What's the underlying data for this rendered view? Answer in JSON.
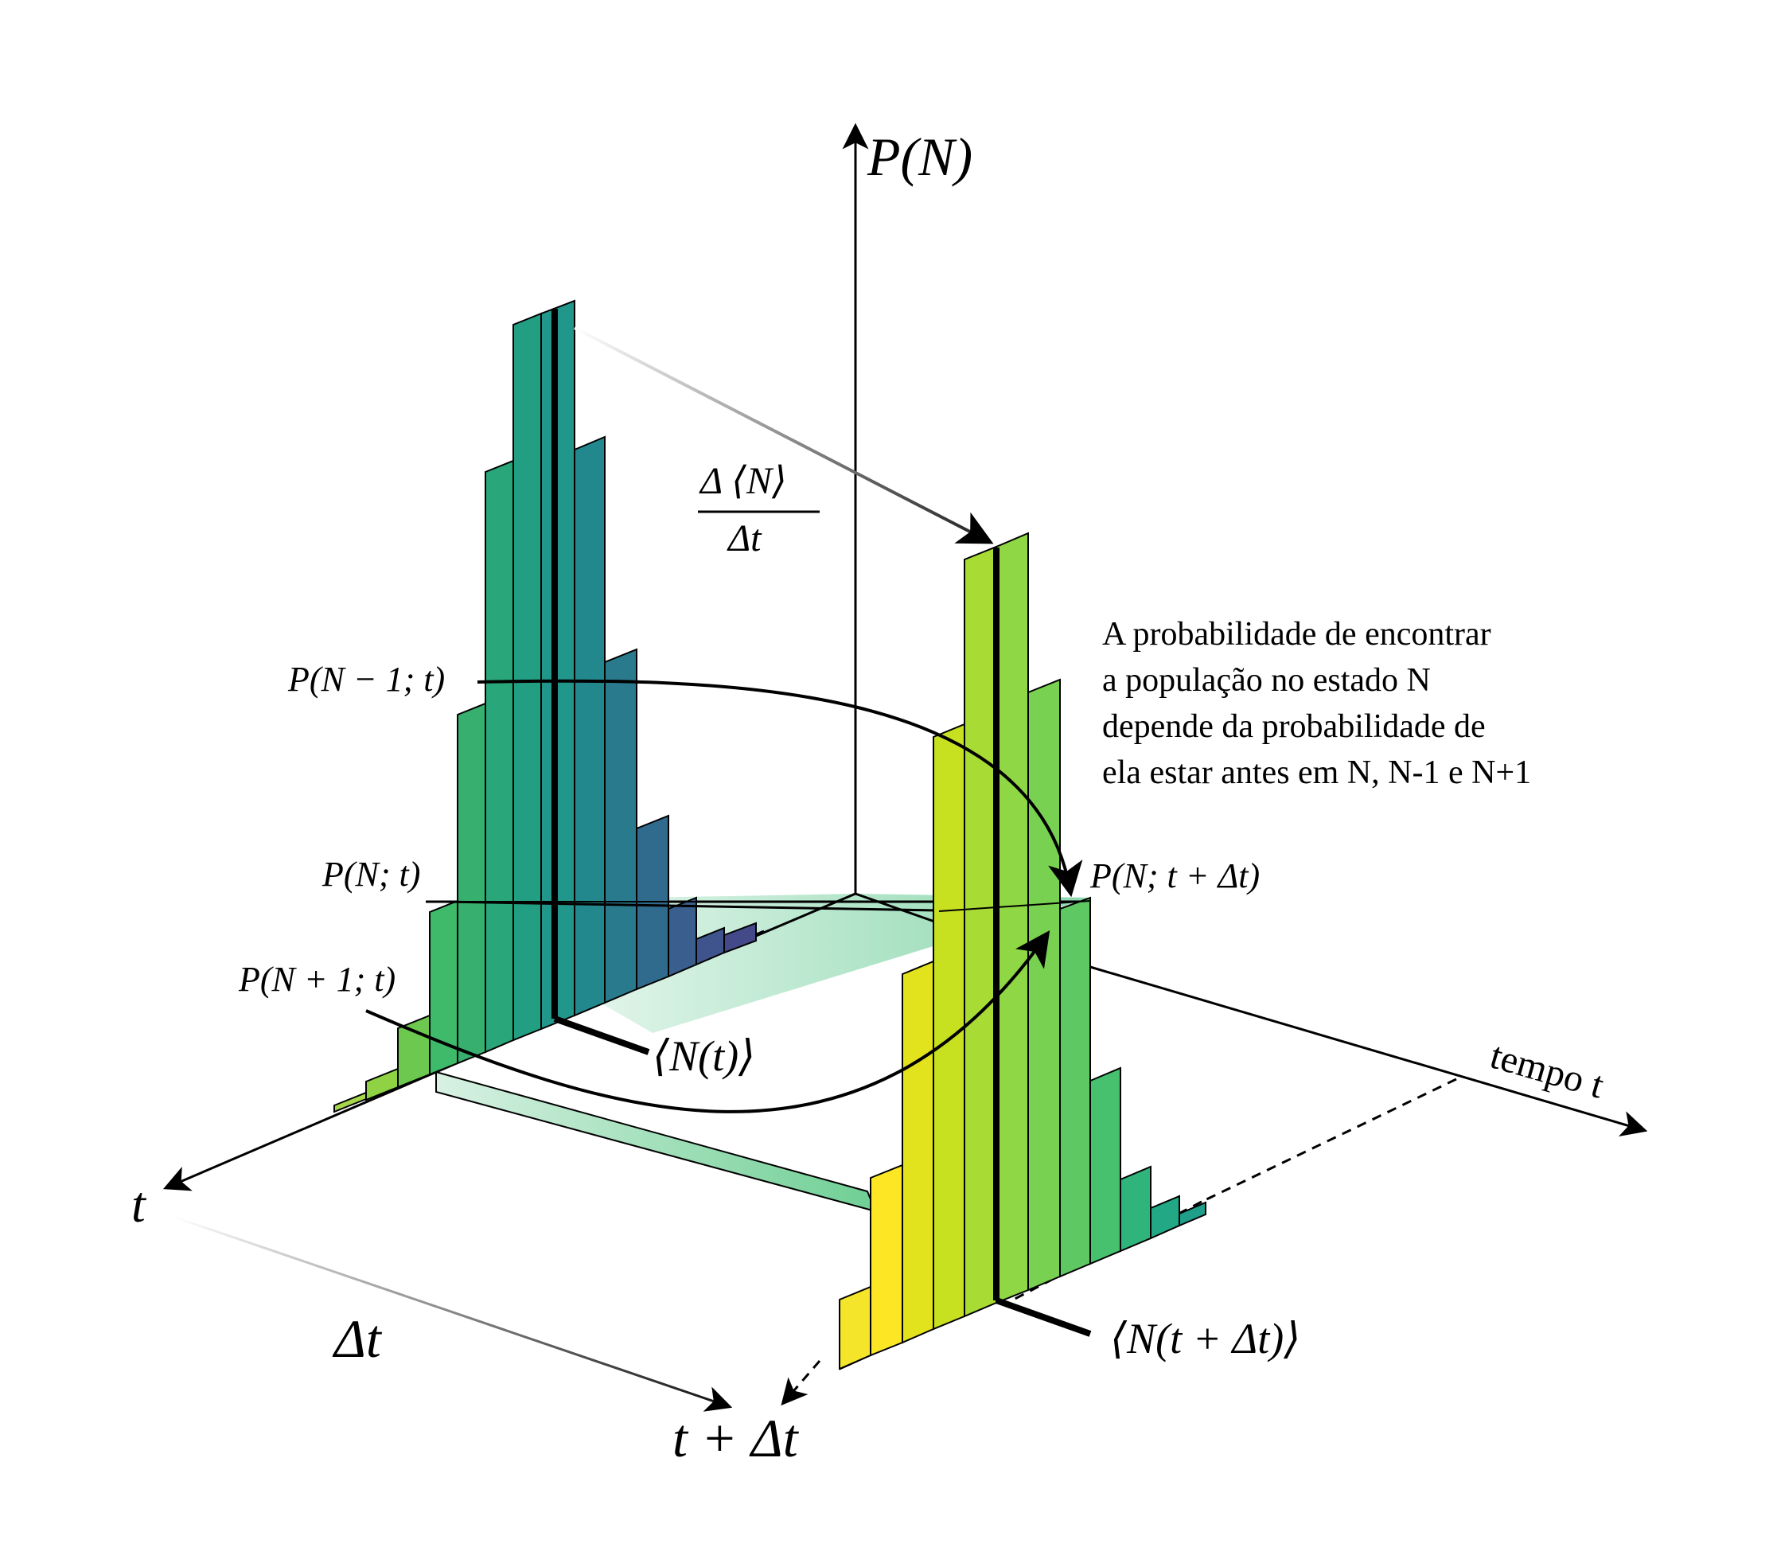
{
  "axes": {
    "vertical": "P(N)",
    "time_axis": "tempo t",
    "t_axis": "t"
  },
  "labels": {
    "t": "t",
    "t_plus_dt": "t + Δt",
    "delta_t": "Δt",
    "rate_numerator": "Δ ⟨N⟩",
    "rate_denominator": "Δt",
    "mean_t": "⟨N(t)⟩",
    "mean_t_dt": "⟨N(t + Δt)⟩",
    "p_n_minus_1": "P(N − 1; t)",
    "p_n": "P(N; t)",
    "p_n_plus_1": "P(N + 1; t)",
    "p_n_t_dt": "P(N; t + Δt)"
  },
  "annotation": {
    "line1": "A probabilidade de encontrar",
    "line2": "a população no estado N",
    "line3": "depende da probabilidade de",
    "line4": "ela estar antes em N, N-1 e N+1"
  },
  "colors": {
    "hist_t": [
      "#a6d64a",
      "#6cc84f",
      "#3fb96a",
      "#2aa77a",
      "#21968a",
      "#1f8a8c",
      "#277a8e",
      "#2e6d8e",
      "#3a5e8e",
      "#3f548d",
      "#44498a"
    ],
    "hist_t_dt": [
      "#fde725",
      "#e2e21d",
      "#c7e020",
      "#a8db34",
      "#8fd744",
      "#79d151",
      "#5ec962",
      "#47c16e",
      "#2fb47c",
      "#22a884",
      "#1f9e89",
      "#22908d"
    ],
    "plane": "#5ec88e",
    "stroke": "#000000"
  }
}
